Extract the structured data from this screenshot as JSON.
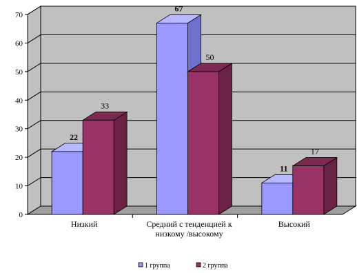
{
  "chart_data": {
    "type": "bar",
    "categories": [
      "Низкий",
      "Средний с тенденцией к низкому /высокому",
      "Высокий"
    ],
    "category_lines": [
      [
        "Низкий"
      ],
      [
        "Средний с тенденцией к",
        "низкому /высокому"
      ],
      [
        "Высокий"
      ]
    ],
    "series": [
      {
        "name": "1 группа",
        "values": [
          22,
          67,
          11
        ],
        "color": "#9999ff",
        "side_color": "#6f6fcc",
        "top_color": "#b8b8ff"
      },
      {
        "name": "2 группа",
        "values": [
          33,
          50,
          17
        ],
        "color": "#993366",
        "side_color": "#6a2247",
        "top_color": "#7d2a52"
      }
    ],
    "ylim": [
      0,
      70
    ],
    "yticks": [
      0,
      10,
      20,
      30,
      40,
      50,
      60,
      70
    ],
    "grid": true,
    "legend": "bottom",
    "title": "",
    "xlabel": "",
    "ylabel": "",
    "colors": {
      "wall": "#c0c0c0",
      "floor": "#a0a0a0",
      "grid": "#000000"
    }
  }
}
